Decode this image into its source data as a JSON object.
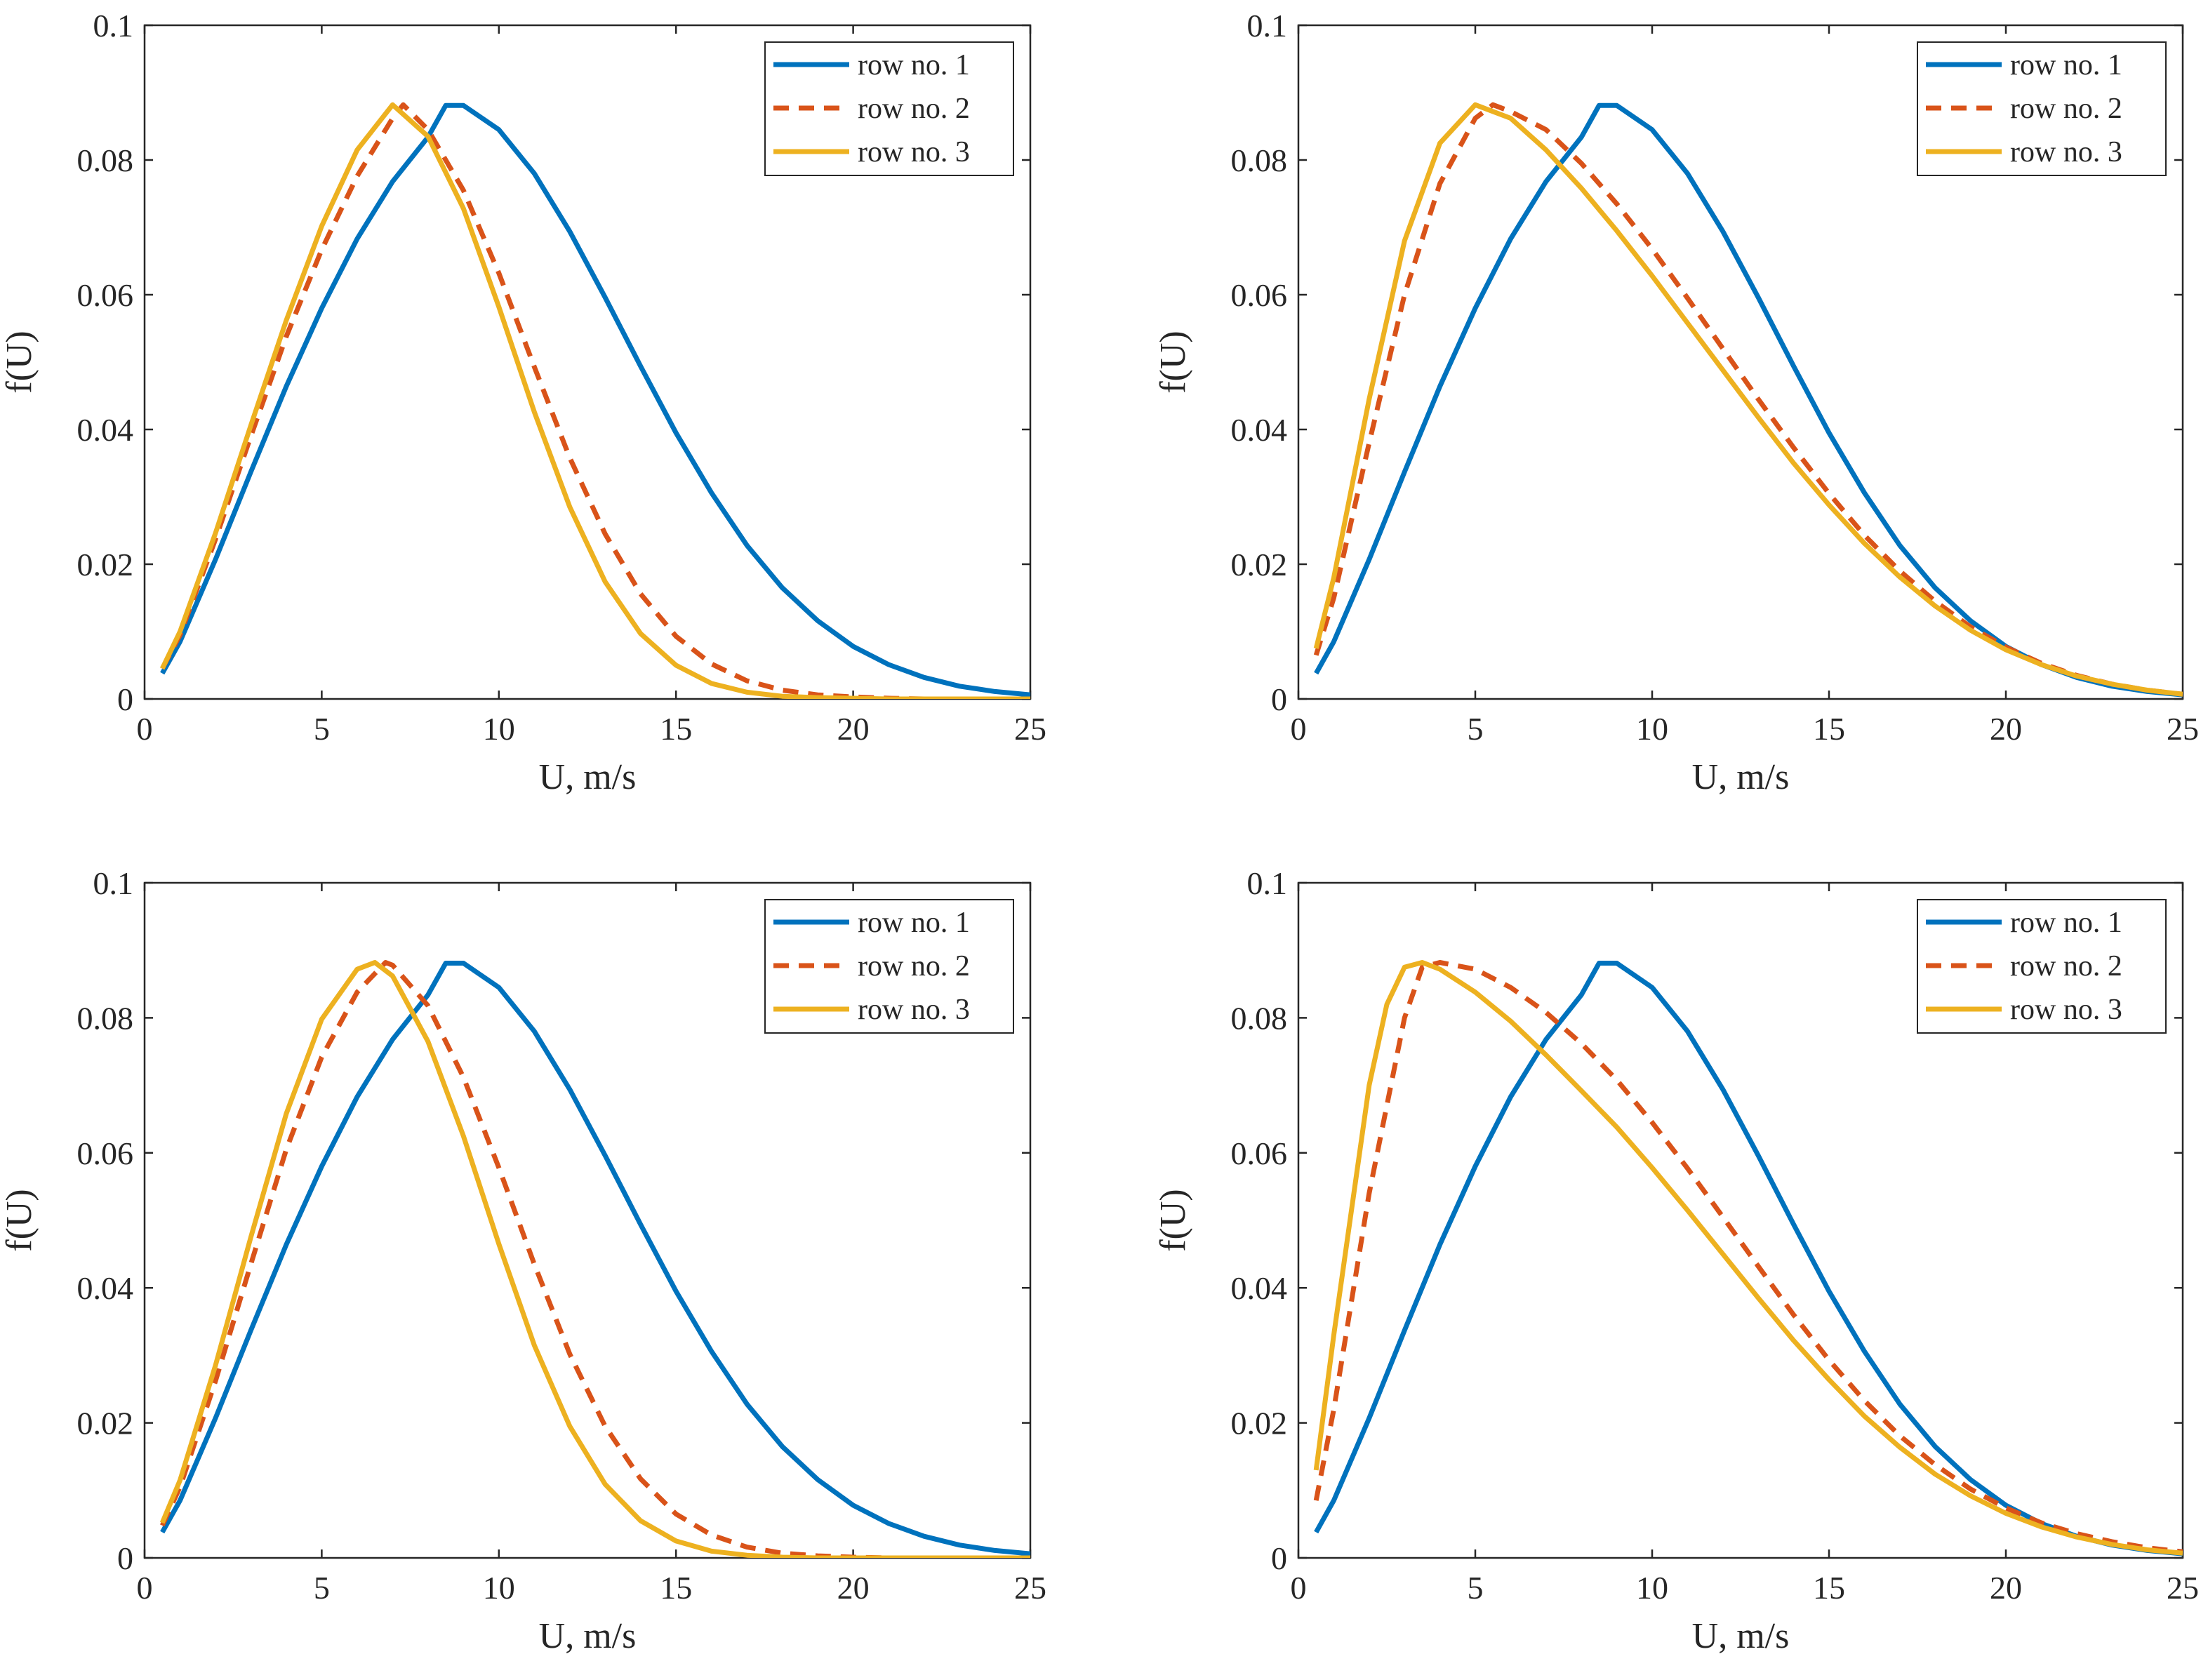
{
  "chart_data": [
    {
      "type": "line",
      "panel": "top-left",
      "title": "",
      "xlabel": "U, m/s",
      "ylabel": "f(U)",
      "xlim": [
        0,
        25
      ],
      "ylim": [
        0,
        0.1
      ],
      "xticks": [
        "0",
        "5",
        "10",
        "15",
        "20",
        "25"
      ],
      "yticks": [
        "0",
        "0.02",
        "0.04",
        "0.06",
        "0.08",
        "0.1"
      ],
      "legend_position": "top-right",
      "series": [
        {
          "name": "row no. 1",
          "color": "#0072BD",
          "dash": "solid",
          "x": [
            0.5,
            1,
            2,
            3,
            4,
            5,
            6,
            7,
            8,
            8.5,
            9,
            10,
            11,
            12,
            13,
            14,
            15,
            16,
            17,
            18,
            19,
            20,
            21,
            22,
            23,
            24,
            25
          ],
          "y": [
            0.0038,
            0.0085,
            0.0207,
            0.0337,
            0.0464,
            0.058,
            0.0683,
            0.0768,
            0.0834,
            0.0881,
            0.0881,
            0.0845,
            0.078,
            0.0694,
            0.0596,
            0.0494,
            0.0395,
            0.0306,
            0.0228,
            0.0165,
            0.0116,
            0.0078,
            0.0051,
            0.0032,
            0.0019,
            0.0011,
            0.0006
          ]
        },
        {
          "name": "row no. 2",
          "color": "#D95319",
          "dash": "dashed",
          "x": [
            0.5,
            1,
            2,
            3,
            4,
            5,
            6,
            7,
            7.3,
            8,
            9,
            10,
            11,
            12,
            13,
            14,
            15,
            16,
            17,
            18,
            19,
            20,
            21,
            22,
            23,
            24,
            25
          ],
          "y": [
            0.0045,
            0.0095,
            0.0237,
            0.039,
            0.0538,
            0.0667,
            0.0776,
            0.0862,
            0.0882,
            0.0845,
            0.0755,
            0.0632,
            0.0493,
            0.0358,
            0.0245,
            0.0156,
            0.0093,
            0.0052,
            0.0027,
            0.0013,
            0.0006,
            0.0003,
            0.0001,
            0.0,
            0.0,
            0.0,
            0.0
          ]
        },
        {
          "name": "row no. 3",
          "color": "#EDB120",
          "dash": "solid",
          "x": [
            0.5,
            1,
            2,
            3,
            4,
            5,
            6,
            7,
            8,
            9,
            10,
            11,
            12,
            13,
            14,
            15,
            16,
            17,
            18,
            19,
            20,
            21,
            22,
            23,
            24,
            25
          ],
          "y": [
            0.0045,
            0.01,
            0.0246,
            0.0406,
            0.0562,
            0.0702,
            0.0815,
            0.0882,
            0.0835,
            0.0728,
            0.0582,
            0.0426,
            0.0285,
            0.0174,
            0.0097,
            0.005,
            0.0023,
            0.001,
            0.0004,
            0.0002,
            0.0001,
            0.0,
            0.0,
            0.0,
            0.0,
            0.0
          ]
        }
      ]
    },
    {
      "type": "line",
      "panel": "top-right",
      "title": "",
      "xlabel": "U, m/s",
      "ylabel": "f(U)",
      "xlim": [
        0,
        25
      ],
      "ylim": [
        0,
        0.1
      ],
      "xticks": [
        "0",
        "5",
        "10",
        "15",
        "20",
        "25"
      ],
      "yticks": [
        "0",
        "0.02",
        "0.04",
        "0.06",
        "0.08",
        "0.1"
      ],
      "legend_position": "top-right",
      "series": [
        {
          "name": "row no. 1",
          "color": "#0072BD",
          "dash": "solid",
          "x": [
            0.5,
            1,
            2,
            3,
            4,
            5,
            6,
            7,
            8,
            8.5,
            9,
            10,
            11,
            12,
            13,
            14,
            15,
            16,
            17,
            18,
            19,
            20,
            21,
            22,
            23,
            24,
            25
          ],
          "y": [
            0.0038,
            0.0085,
            0.0207,
            0.0337,
            0.0464,
            0.058,
            0.0683,
            0.0768,
            0.0834,
            0.0881,
            0.0881,
            0.0845,
            0.078,
            0.0694,
            0.0596,
            0.0494,
            0.0395,
            0.0306,
            0.0228,
            0.0165,
            0.0116,
            0.0078,
            0.0051,
            0.0032,
            0.0019,
            0.0011,
            0.0006
          ]
        },
        {
          "name": "row no. 2",
          "color": "#D95319",
          "dash": "dashed",
          "x": [
            0.5,
            1,
            2,
            3,
            4,
            5,
            5.5,
            6,
            7,
            8,
            9,
            10,
            11,
            12,
            13,
            14,
            15,
            16,
            17,
            18,
            19,
            20,
            21,
            22,
            23,
            24,
            25
          ],
          "y": [
            0.0065,
            0.015,
            0.038,
            0.06,
            0.0765,
            0.0862,
            0.0882,
            0.0872,
            0.0845,
            0.0795,
            0.0735,
            0.0668,
            0.0595,
            0.052,
            0.0445,
            0.0373,
            0.0305,
            0.0243,
            0.019,
            0.0145,
            0.0107,
            0.0077,
            0.0053,
            0.0035,
            0.0022,
            0.0013,
            0.0007
          ]
        },
        {
          "name": "row no. 3",
          "color": "#EDB120",
          "dash": "solid",
          "x": [
            0.5,
            1,
            2,
            3,
            4,
            5,
            6,
            7,
            8,
            9,
            10,
            11,
            12,
            13,
            14,
            15,
            16,
            17,
            18,
            19,
            20,
            21,
            22,
            23,
            24,
            25
          ],
          "y": [
            0.0075,
            0.018,
            0.0445,
            0.068,
            0.0825,
            0.0882,
            0.0862,
            0.0815,
            0.0758,
            0.0695,
            0.0628,
            0.0558,
            0.0488,
            0.0418,
            0.035,
            0.0288,
            0.0231,
            0.0181,
            0.0138,
            0.0102,
            0.0073,
            0.0051,
            0.0034,
            0.0022,
            0.0013,
            0.0007
          ]
        }
      ]
    },
    {
      "type": "line",
      "panel": "bottom-left",
      "title": "",
      "xlabel": "U, m/s",
      "ylabel": "f(U)",
      "xlim": [
        0,
        25
      ],
      "ylim": [
        0,
        0.1
      ],
      "xticks": [
        "0",
        "5",
        "10",
        "15",
        "20",
        "25"
      ],
      "yticks": [
        "0",
        "0.02",
        "0.04",
        "0.06",
        "0.08",
        "0.1"
      ],
      "legend_position": "top-right",
      "series": [
        {
          "name": "row no. 1",
          "color": "#0072BD",
          "dash": "solid",
          "x": [
            0.5,
            1,
            2,
            3,
            4,
            5,
            6,
            7,
            8,
            8.5,
            9,
            10,
            11,
            12,
            13,
            14,
            15,
            16,
            17,
            18,
            19,
            20,
            21,
            22,
            23,
            24,
            25
          ],
          "y": [
            0.0038,
            0.0085,
            0.0207,
            0.0337,
            0.0464,
            0.058,
            0.0683,
            0.0768,
            0.0834,
            0.0881,
            0.0881,
            0.0845,
            0.078,
            0.0694,
            0.0596,
            0.0494,
            0.0395,
            0.0306,
            0.0228,
            0.0165,
            0.0116,
            0.0078,
            0.0051,
            0.0032,
            0.0019,
            0.0011,
            0.0006
          ]
        },
        {
          "name": "row no. 2",
          "color": "#D95319",
          "dash": "dashed",
          "x": [
            0.5,
            1,
            2,
            3,
            4,
            5,
            6,
            6.8,
            7,
            8,
            9,
            10,
            11,
            12,
            13,
            14,
            15,
            16,
            17,
            18,
            19,
            20,
            21,
            22,
            23,
            24,
            25
          ],
          "y": [
            0.0048,
            0.0105,
            0.0262,
            0.0435,
            0.0605,
            0.0742,
            0.0838,
            0.0882,
            0.0878,
            0.0818,
            0.0712,
            0.0578,
            0.0435,
            0.0302,
            0.0195,
            0.0117,
            0.0065,
            0.0034,
            0.0016,
            0.0007,
            0.0003,
            0.0001,
            0.0,
            0.0,
            0.0,
            0.0,
            0.0
          ]
        },
        {
          "name": "row no. 3",
          "color": "#EDB120",
          "dash": "solid",
          "x": [
            0.5,
            1,
            2,
            3,
            4,
            5,
            6,
            6.5,
            7,
            8,
            9,
            10,
            11,
            12,
            13,
            14,
            15,
            16,
            17,
            18,
            19,
            20,
            21,
            22,
            23,
            24,
            25
          ],
          "y": [
            0.0052,
            0.0115,
            0.0285,
            0.0475,
            0.0658,
            0.0798,
            0.0872,
            0.0882,
            0.0862,
            0.0765,
            0.0625,
            0.0465,
            0.0315,
            0.0195,
            0.0109,
            0.0055,
            0.0025,
            0.001,
            0.0004,
            0.0001,
            0.0,
            0.0,
            0.0,
            0.0,
            0.0,
            0.0,
            0.0
          ]
        }
      ]
    },
    {
      "type": "line",
      "panel": "bottom-right",
      "title": "",
      "xlabel": "U, m/s",
      "ylabel": "f(U)",
      "xlim": [
        0,
        25
      ],
      "ylim": [
        0,
        0.1
      ],
      "xticks": [
        "0",
        "5",
        "10",
        "15",
        "20",
        "25"
      ],
      "yticks": [
        "0",
        "0.02",
        "0.04",
        "0.06",
        "0.08",
        "0.1"
      ],
      "legend_position": "top-right",
      "series": [
        {
          "name": "row no. 1",
          "color": "#0072BD",
          "dash": "solid",
          "x": [
            0.5,
            1,
            2,
            3,
            4,
            5,
            6,
            7,
            8,
            8.5,
            9,
            10,
            11,
            12,
            13,
            14,
            15,
            16,
            17,
            18,
            19,
            20,
            21,
            22,
            23,
            24,
            25
          ],
          "y": [
            0.0038,
            0.0085,
            0.0207,
            0.0337,
            0.0464,
            0.058,
            0.0683,
            0.0768,
            0.0834,
            0.0881,
            0.0881,
            0.0845,
            0.078,
            0.0694,
            0.0596,
            0.0494,
            0.0395,
            0.0306,
            0.0228,
            0.0165,
            0.0116,
            0.0078,
            0.0051,
            0.0032,
            0.0019,
            0.0011,
            0.0006
          ]
        },
        {
          "name": "row no. 2",
          "color": "#D95319",
          "dash": "dashed",
          "x": [
            0.5,
            1,
            2,
            3,
            3.5,
            4,
            5,
            6,
            7,
            8,
            9,
            10,
            11,
            12,
            13,
            14,
            15,
            16,
            17,
            18,
            19,
            20,
            21,
            22,
            23,
            24,
            25
          ],
          "y": [
            0.0085,
            0.022,
            0.054,
            0.08,
            0.0875,
            0.0882,
            0.0872,
            0.0845,
            0.0808,
            0.0762,
            0.0708,
            0.0645,
            0.0577,
            0.0505,
            0.0432,
            0.036,
            0.0293,
            0.0233,
            0.0181,
            0.0138,
            0.0102,
            0.0074,
            0.0052,
            0.0036,
            0.0024,
            0.0015,
            0.0009
          ]
        },
        {
          "name": "row no. 3",
          "color": "#EDB120",
          "dash": "solid",
          "x": [
            0.5,
            1,
            2,
            2.5,
            3,
            3.5,
            4,
            5,
            6,
            7,
            8,
            9,
            10,
            11,
            12,
            13,
            14,
            15,
            16,
            17,
            18,
            19,
            20,
            21,
            22,
            23,
            24,
            25
          ],
          "y": [
            0.013,
            0.033,
            0.07,
            0.082,
            0.0875,
            0.0882,
            0.0872,
            0.0838,
            0.0795,
            0.0745,
            0.0692,
            0.0638,
            0.0578,
            0.0515,
            0.045,
            0.0385,
            0.0322,
            0.0264,
            0.021,
            0.0164,
            0.0124,
            0.0092,
            0.0066,
            0.0046,
            0.0031,
            0.002,
            0.0012,
            0.0007
          ]
        }
      ]
    }
  ]
}
